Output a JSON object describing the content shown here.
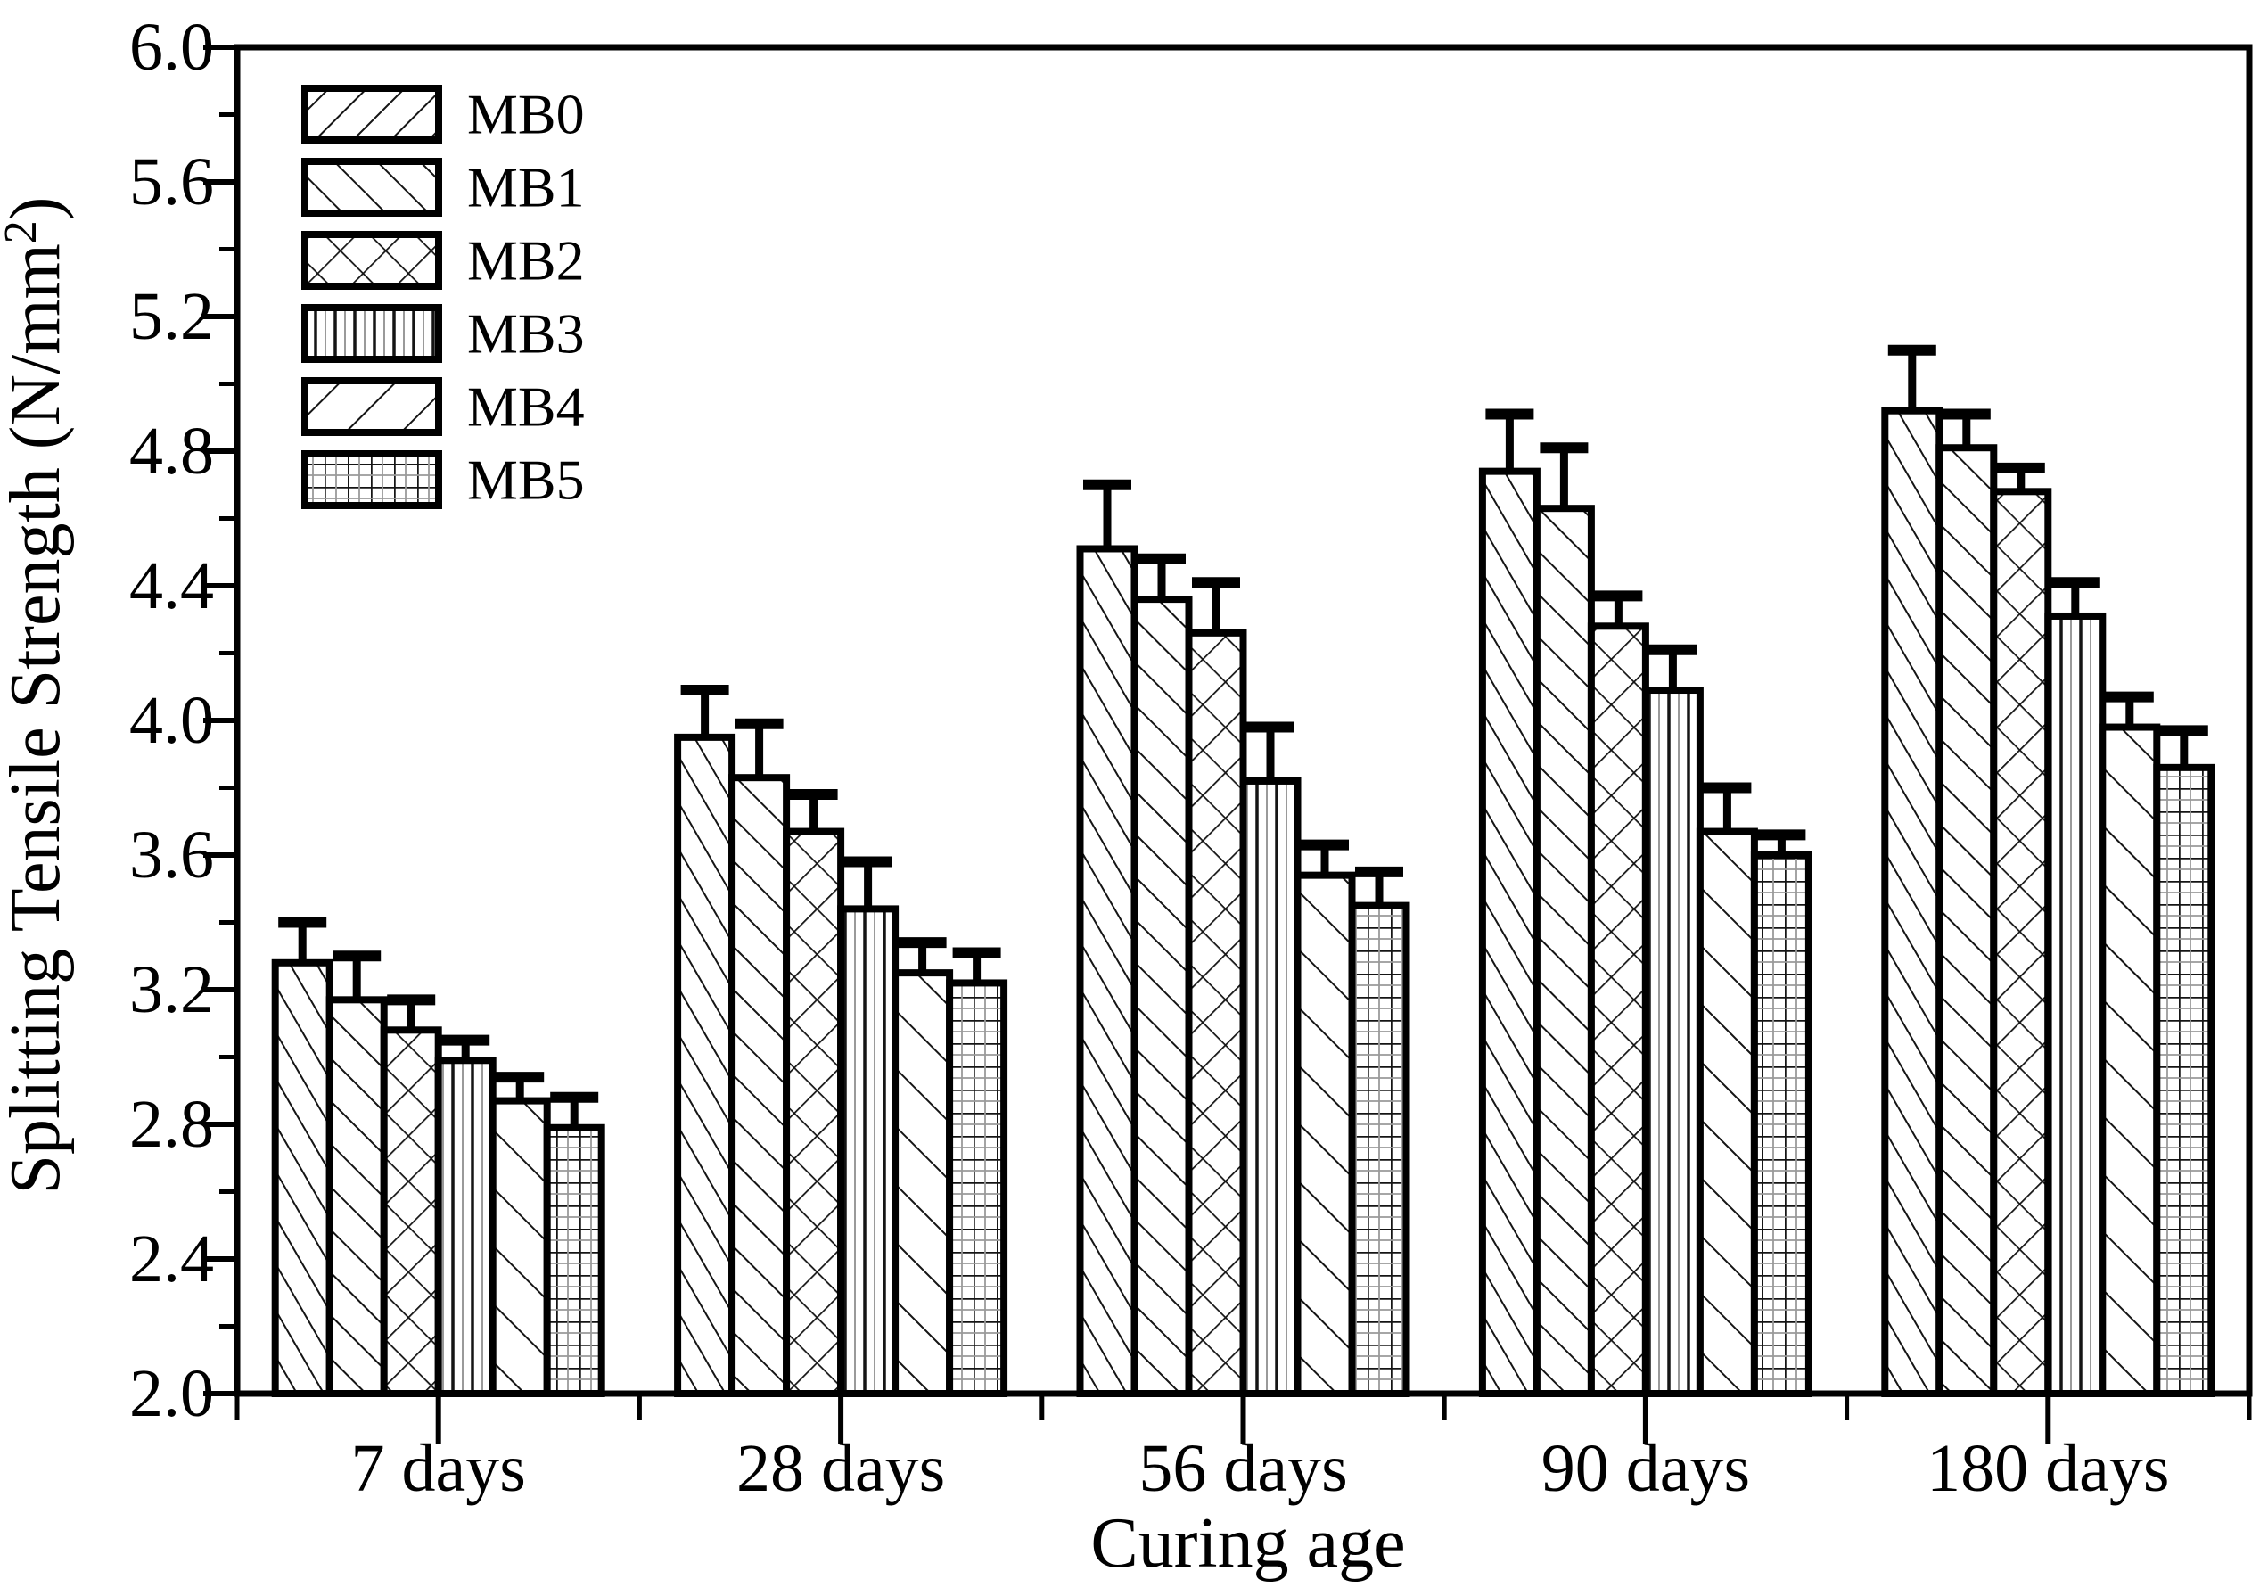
{
  "figure": {
    "background": "#ffffff",
    "ink": "#000000"
  },
  "chart_data": {
    "type": "bar",
    "title": "",
    "xlabel": "Curing age",
    "ylabel": "Splitting Tensile Strength (N/mm2)",
    "ylabel_main": "Splitting Tensile Strength (N/mm",
    "ylabel_sup": "2",
    "ylabel_close": ")",
    "categories": [
      "7 days",
      "28 days",
      "56 days",
      "90 days",
      "180 days"
    ],
    "series": [
      {
        "name": "MB0",
        "values": [
          3.28,
          3.95,
          4.51,
          4.74,
          4.92
        ],
        "errors": [
          0.12,
          0.14,
          0.19,
          0.17,
          0.18
        ],
        "bar_hatch": "diagonal-back-steep",
        "legend_hatch": "diagonal-forward"
      },
      {
        "name": "MB1",
        "values": [
          3.17,
          3.83,
          4.36,
          4.63,
          4.81
        ],
        "errors": [
          0.13,
          0.16,
          0.12,
          0.18,
          0.1
        ],
        "bar_hatch": "diagonal-back",
        "legend_hatch": "diagonal-back"
      },
      {
        "name": "MB2",
        "values": [
          3.08,
          3.67,
          4.26,
          4.28,
          4.68
        ],
        "errors": [
          0.09,
          0.11,
          0.15,
          0.09,
          0.07
        ],
        "bar_hatch": "crosshatch",
        "legend_hatch": "crosshatch"
      },
      {
        "name": "MB3",
        "values": [
          2.99,
          3.44,
          3.82,
          4.09,
          4.31
        ],
        "errors": [
          0.06,
          0.14,
          0.16,
          0.12,
          0.1
        ],
        "bar_hatch": "vertical-lines",
        "legend_hatch": "vertical-lines"
      },
      {
        "name": "MB4",
        "values": [
          2.87,
          3.25,
          3.54,
          3.67,
          3.98
        ],
        "errors": [
          0.07,
          0.09,
          0.09,
          0.13,
          0.09
        ],
        "bar_hatch": "diagonal-back-sparse",
        "legend_hatch": "diagonal-forward-sparse"
      },
      {
        "name": "MB5",
        "values": [
          2.79,
          3.22,
          3.45,
          3.6,
          3.86
        ],
        "errors": [
          0.09,
          0.09,
          0.1,
          0.06,
          0.11
        ],
        "bar_hatch": "grid",
        "legend_hatch": "grid"
      }
    ],
    "ylim": [
      2.0,
      6.0
    ],
    "y_major_step": 0.4,
    "y_minor_step": 0.2,
    "y_tick_labels": [
      "2.0",
      "2.4",
      "2.8",
      "3.2",
      "3.6",
      "4.0",
      "4.4",
      "4.8",
      "5.2",
      "5.6",
      "6.0"
    ],
    "grid": false,
    "legend_position": "top-left-inside",
    "error_bars": "upper-only",
    "bar_fill": "#ffffff",
    "hatch_color": "#151515"
  }
}
